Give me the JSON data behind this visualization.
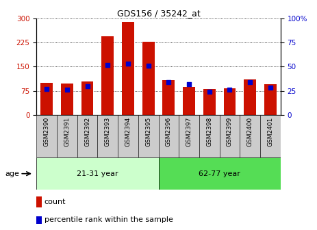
{
  "title": "GDS156 / 35242_at",
  "samples": [
    "GSM2390",
    "GSM2391",
    "GSM2392",
    "GSM2393",
    "GSM2394",
    "GSM2395",
    "GSM2396",
    "GSM2397",
    "GSM2398",
    "GSM2399",
    "GSM2400",
    "GSM2401"
  ],
  "counts": [
    100,
    97,
    105,
    245,
    290,
    228,
    108,
    88,
    80,
    83,
    110,
    95
  ],
  "percentiles": [
    27,
    26,
    30,
    52,
    53,
    51,
    34,
    32,
    24,
    26,
    34,
    28
  ],
  "groups": [
    {
      "label": "21-31 year",
      "start": 0,
      "end": 6
    },
    {
      "label": "62-77 year",
      "start": 6,
      "end": 12
    }
  ],
  "group_color_light": "#ccffcc",
  "group_color_dark": "#55dd55",
  "bar_color": "#cc1100",
  "dot_color": "#0000cc",
  "ylim_left": [
    0,
    300
  ],
  "ylim_right": [
    0,
    100
  ],
  "yticks_left": [
    0,
    75,
    150,
    225,
    300
  ],
  "yticks_right": [
    0,
    25,
    50,
    75,
    100
  ],
  "ylabel_left_color": "#cc1100",
  "ylabel_right_color": "#0000cc",
  "background_color": "#ffffff",
  "grid_color": "#000000",
  "legend_count_label": "count",
  "legend_percentile_label": "percentile rank within the sample",
  "age_label": "age",
  "tick_bg_color": "#cccccc"
}
